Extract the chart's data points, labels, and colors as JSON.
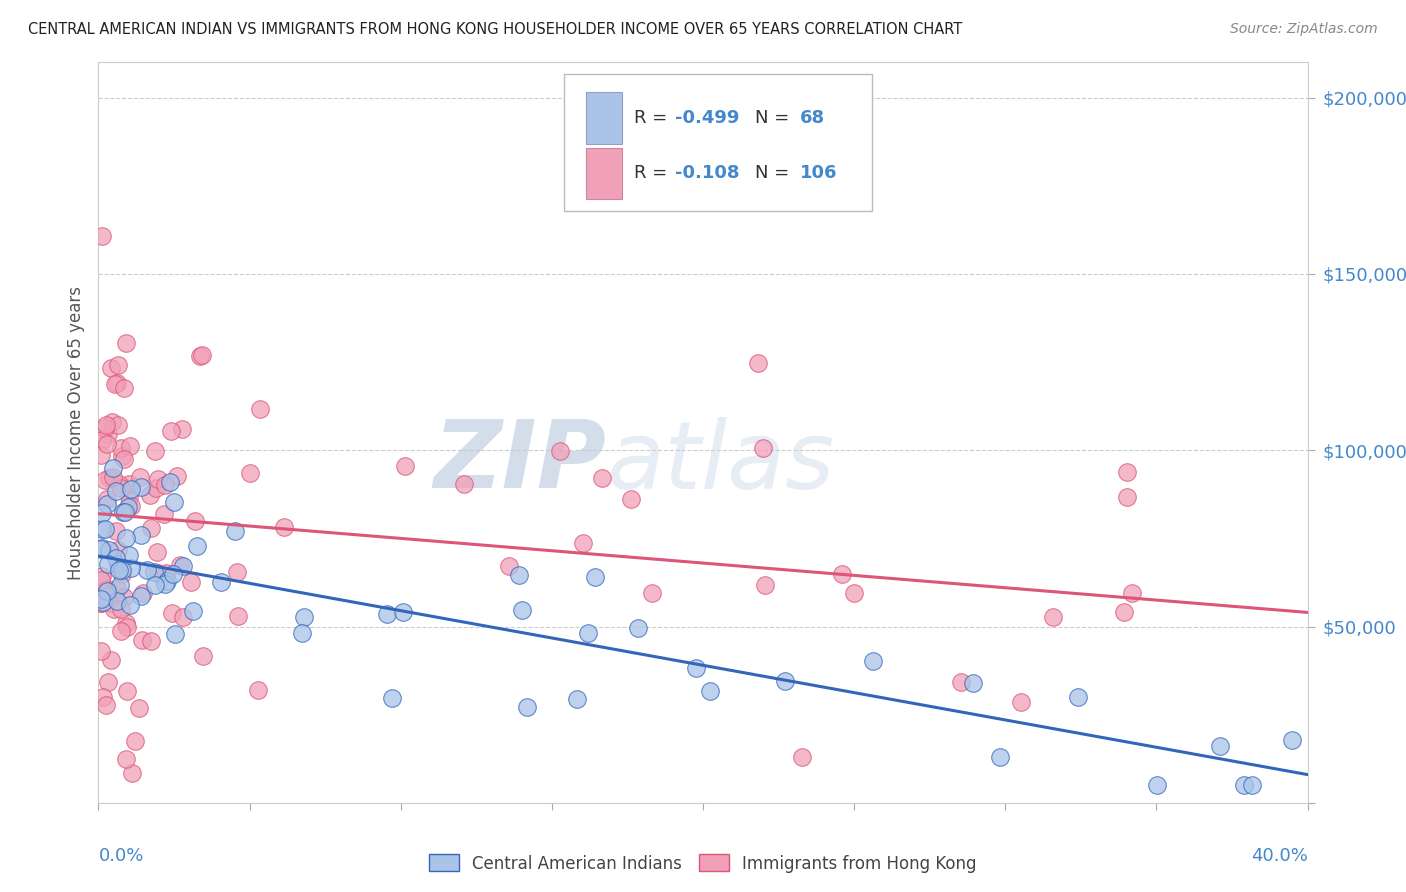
{
  "title": "CENTRAL AMERICAN INDIAN VS IMMIGRANTS FROM HONG KONG HOUSEHOLDER INCOME OVER 65 YEARS CORRELATION CHART",
  "source": "Source: ZipAtlas.com",
  "ylabel": "Householder Income Over 65 years",
  "xlim": [
    0.0,
    0.4
  ],
  "ylim": [
    0,
    210000
  ],
  "blue_color": "#aac4e8",
  "pink_color": "#f0a0b8",
  "blue_line_color": "#3366bb",
  "pink_line_color": "#dd5577",
  "axis_color": "#4488cc",
  "grid_color": "#cccccc",
  "blue_intercept": 70000,
  "blue_slope": -155000,
  "pink_intercept": 82000,
  "pink_slope": -70000,
  "blue_seed": 77,
  "pink_seed": 33,
  "blue_n": 68,
  "pink_n": 106
}
